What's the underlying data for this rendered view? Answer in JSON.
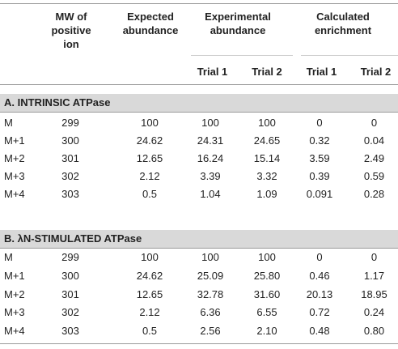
{
  "headers": {
    "mw": [
      "MW of",
      "positive",
      "ion"
    ],
    "expected": [
      "Expected",
      "abundance"
    ],
    "experimental": [
      "Experimental",
      "abundance"
    ],
    "calculated": [
      "Calculated",
      "enrichment"
    ],
    "exp_trial1": "Trial 1",
    "exp_trial2": "Trial 2",
    "calc_trial1": "Trial 1",
    "calc_trial2": "Trial 2"
  },
  "sections": [
    {
      "title": "A. INTRINSIC ATPase",
      "rows": [
        {
          "label": "M",
          "mw": "299",
          "expected": "100",
          "exp_t1": "100",
          "exp_t2": "100",
          "calc_t1": "0",
          "calc_t2": "0"
        },
        {
          "label": "M+1",
          "mw": "300",
          "expected": "24.62",
          "exp_t1": "24.31",
          "exp_t2": "24.65",
          "calc_t1": "0.32",
          "calc_t2": "0.04"
        },
        {
          "label": "M+2",
          "mw": "301",
          "expected": "12.65",
          "exp_t1": "16.24",
          "exp_t2": "15.14",
          "calc_t1": "3.59",
          "calc_t2": "2.49"
        },
        {
          "label": "M+3",
          "mw": "302",
          "expected": "2.12",
          "exp_t1": "3.39",
          "exp_t2": "3.32",
          "calc_t1": "0.39",
          "calc_t2": "0.59"
        },
        {
          "label": "M+4",
          "mw": "303",
          "expected": "0.5",
          "exp_t1": "1.04",
          "exp_t2": "1.09",
          "calc_t1": "0.091",
          "calc_t2": "0.28"
        }
      ]
    },
    {
      "title": "B. λN-STIMULATED ATPase",
      "rows": [
        {
          "label": "M",
          "mw": "299",
          "expected": "100",
          "exp_t1": "100",
          "exp_t2": "100",
          "calc_t1": "0",
          "calc_t2": "0"
        },
        {
          "label": "M+1",
          "mw": "300",
          "expected": "24.62",
          "exp_t1": "25.09",
          "exp_t2": "25.80",
          "calc_t1": "0.46",
          "calc_t2": "1.17"
        },
        {
          "label": "M+2",
          "mw": "301",
          "expected": "12.65",
          "exp_t1": "32.78",
          "exp_t2": "31.60",
          "calc_t1": "20.13",
          "calc_t2": "18.95"
        },
        {
          "label": "M+3",
          "mw": "302",
          "expected": "2.12",
          "exp_t1": "6.36",
          "exp_t2": "6.55",
          "calc_t1": "0.72",
          "calc_t2": "0.24"
        },
        {
          "label": "M+4",
          "mw": "303",
          "expected": "0.5",
          "exp_t1": "2.56",
          "exp_t2": "2.10",
          "calc_t1": "0.48",
          "calc_t2": "0.80"
        }
      ]
    }
  ]
}
